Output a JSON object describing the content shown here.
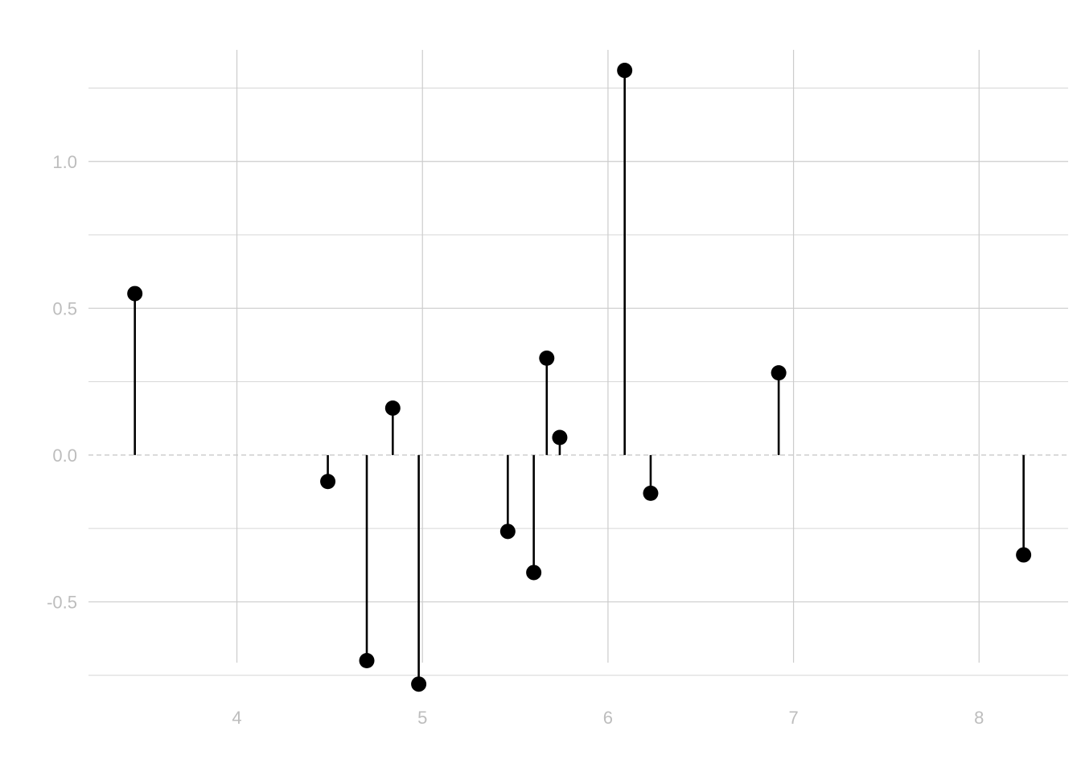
{
  "chart_data": {
    "type": "scatter",
    "subtype": "lollipop",
    "title": "",
    "xlabel": "",
    "ylabel": "",
    "xlim": [
      3.2,
      8.48
    ],
    "ylim": [
      -0.8,
      1.38
    ],
    "x_ticks": [
      4,
      5,
      6,
      7,
      8
    ],
    "x_tick_labels": [
      "4",
      "5",
      "6",
      "7",
      "8"
    ],
    "y_ticks": [
      -0.5,
      0.0,
      0.5,
      1.0
    ],
    "y_tick_labels": [
      "-0.5",
      "0.0",
      "0.5",
      "1.0"
    ],
    "y_minor_ticks": [
      -0.75,
      -0.25,
      0.25,
      0.75,
      1.25
    ],
    "grid": true,
    "baseline": 0,
    "colors": {
      "stem": "#000000",
      "point": "#000000",
      "grid": "#cccccc",
      "tick_label": "#bdbdbd",
      "baseline": "#c4c4c4"
    },
    "points": [
      {
        "x": 3.45,
        "y": 0.55
      },
      {
        "x": 4.49,
        "y": -0.09
      },
      {
        "x": 4.7,
        "y": -0.7
      },
      {
        "x": 4.84,
        "y": 0.16
      },
      {
        "x": 4.98,
        "y": -0.78
      },
      {
        "x": 5.46,
        "y": -0.26
      },
      {
        "x": 5.6,
        "y": -0.4
      },
      {
        "x": 5.67,
        "y": 0.33
      },
      {
        "x": 5.74,
        "y": 0.06
      },
      {
        "x": 6.09,
        "y": 1.31
      },
      {
        "x": 6.23,
        "y": -0.13
      },
      {
        "x": 6.92,
        "y": 0.28
      },
      {
        "x": 8.24,
        "y": -0.34
      }
    ]
  }
}
